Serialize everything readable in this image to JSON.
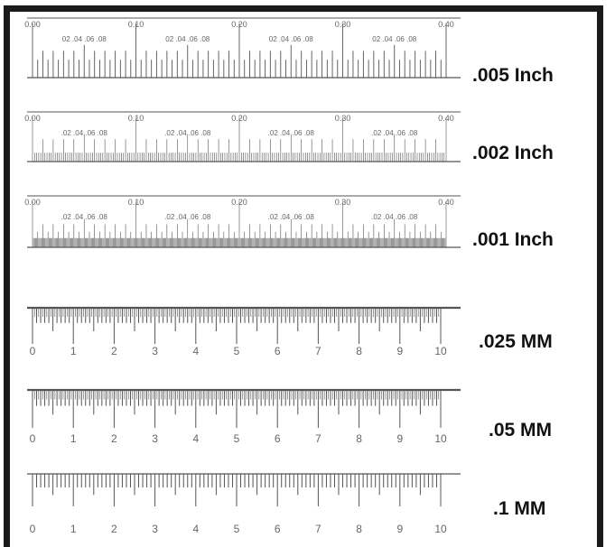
{
  "scales": [
    {
      "label": ".005 Inch",
      "style": "inch",
      "top_labels": [
        "0.00",
        "0.10",
        "0.20",
        "0.30",
        "0.40"
      ],
      "sub_labels": [
        "02 .04 .06 .08",
        "02 .04 .06 .08",
        "02 .04 .06 .08",
        "02 .04 .06 .08"
      ]
    },
    {
      "label": ".002 Inch",
      "style": "inch",
      "top_labels": [
        "0.00",
        "0.10",
        "0.20",
        "0.30",
        "0.40"
      ],
      "sub_labels": [
        ".02 .04 .06 .08",
        ".02 .04 .06 .08",
        ".02 .04 .06 .08",
        ".02 .04 .06 .08"
      ]
    },
    {
      "label": ".001 Inch",
      "style": "inch",
      "top_labels": [
        "0.00",
        "0.10",
        "0.20",
        "0.30",
        "0.40"
      ],
      "sub_labels": [
        ".02 .04 .06 .08",
        ".02 .04 .06 .08",
        ".02 .04 .06 .08",
        ".02 .04 .06 .08"
      ]
    },
    {
      "label": ".025 MM",
      "style": "mm",
      "bottom_labels": [
        "0",
        "1",
        "2",
        "3",
        "4",
        "5",
        "6",
        "7",
        "8",
        "9",
        "10"
      ]
    },
    {
      "label": ".05 MM",
      "style": "mm",
      "bottom_labels": [
        "0",
        "1",
        "2",
        "3",
        "4",
        "5",
        "6",
        "7",
        "8",
        "9",
        "10"
      ]
    },
    {
      "label": ".1 MM",
      "style": "mm",
      "bottom_labels": [
        "0",
        "1",
        "2",
        "3",
        "4",
        "5",
        "6",
        "7",
        "8",
        "9",
        "10"
      ]
    }
  ],
  "colors": {
    "border": "#1a1a1a",
    "ticks": "#555555",
    "text": "#111111"
  }
}
